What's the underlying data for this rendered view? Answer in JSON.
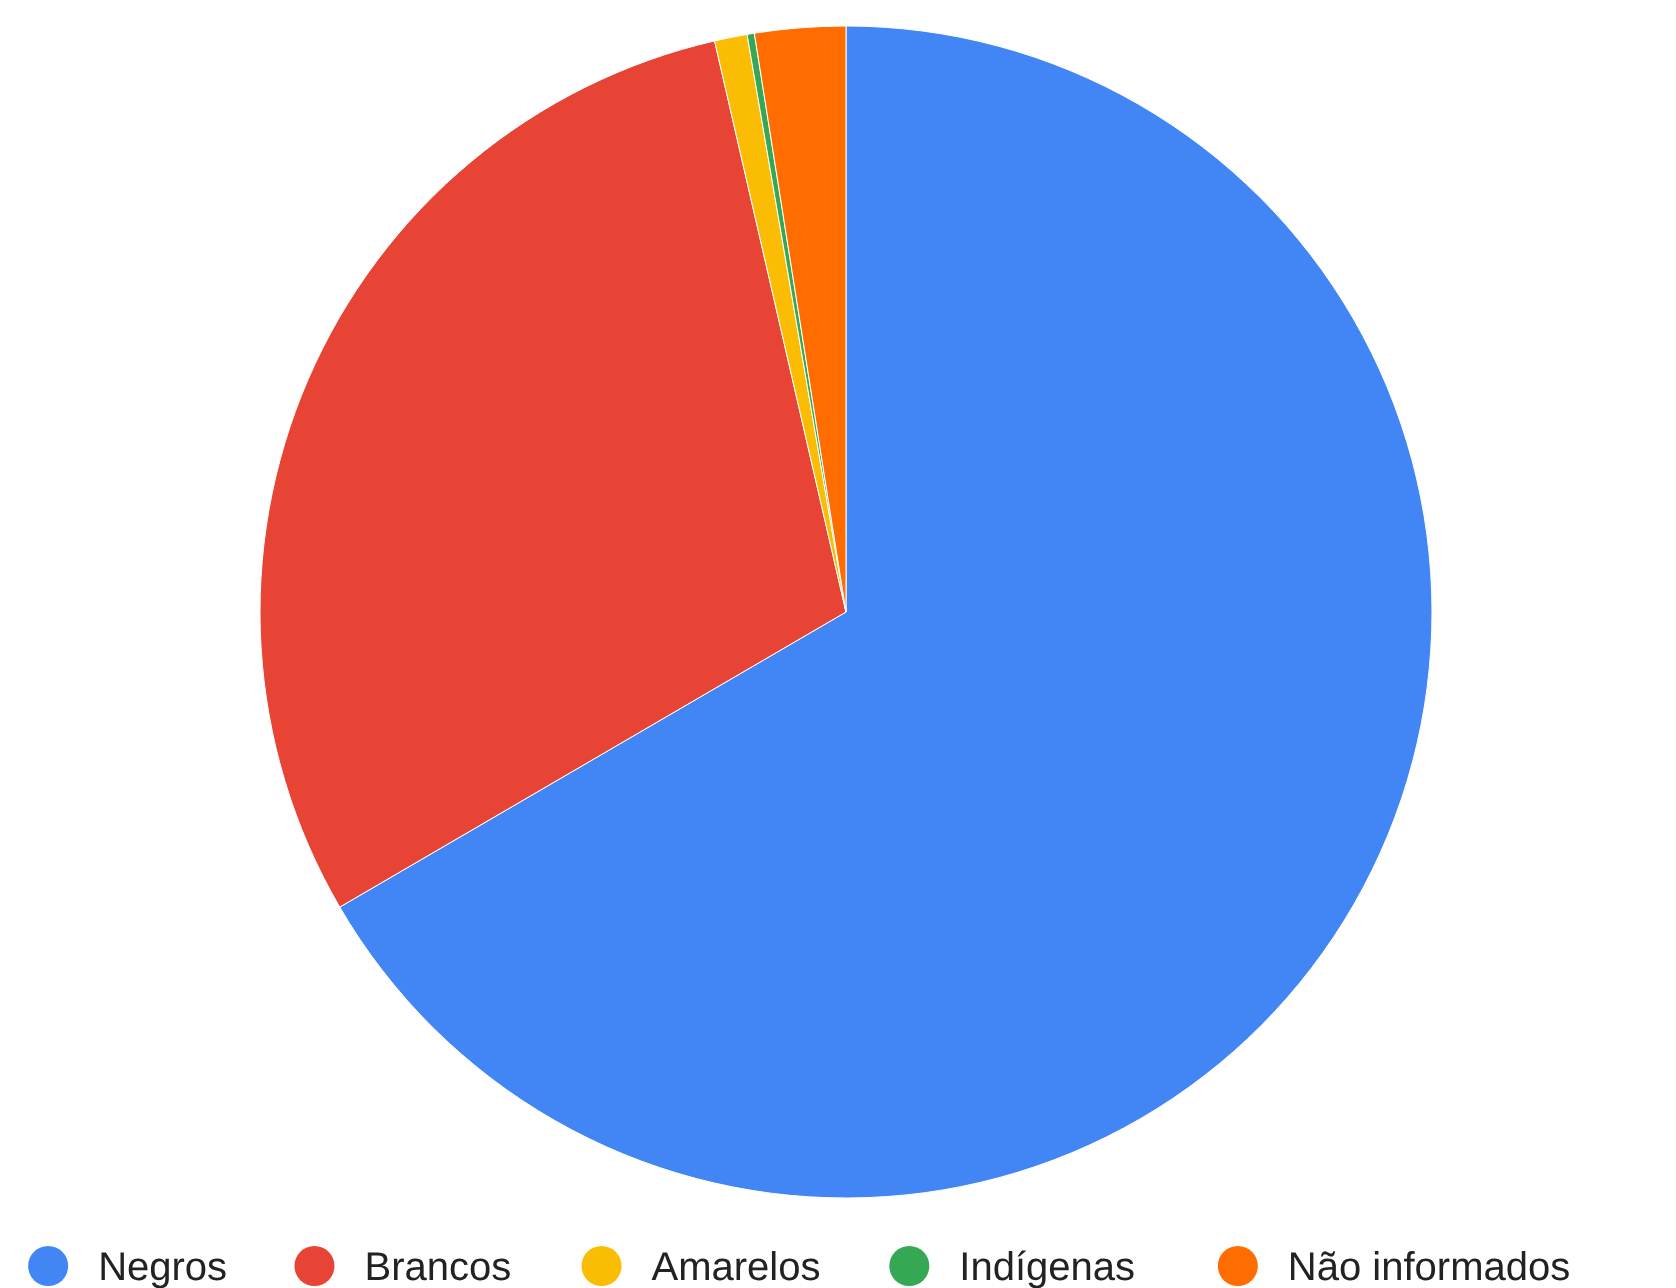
{
  "chart_data": {
    "type": "pie",
    "categories": [
      "Negros",
      "Brancos",
      "Amarelos",
      "Indígenas",
      "Não informados"
    ],
    "values": [
      66.6,
      29.8,
      0.9,
      0.2,
      2.5
    ],
    "colors": [
      "#4285f4",
      "#e84436",
      "#fbbc04",
      "#34a853",
      "#ff6d01"
    ],
    "legend": "bottom"
  }
}
